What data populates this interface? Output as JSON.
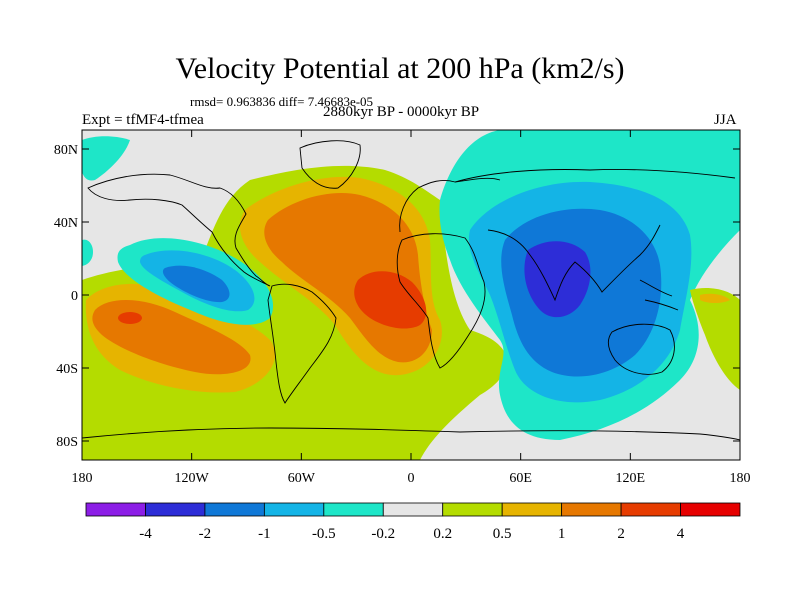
{
  "title": "Velocity Potential at 200 hPa (km2/s)",
  "stats_line": "rmsd= 0.963836 diff= 7.46683e-05",
  "experiment": "Expt = tfMF4-tfmea",
  "period": "2880kyr BP - 0000kyr BP",
  "season": "JJA",
  "axes": {
    "x_ticks": [
      "180",
      "120W",
      "60W",
      "0",
      "60E",
      "120E",
      "180"
    ],
    "y_ticks": [
      "80N",
      "40N",
      "0",
      "40S",
      "80S"
    ]
  },
  "colorbar": {
    "labels": [
      "-4",
      "-2",
      "-1",
      "-0.5",
      "-0.2",
      "0.2",
      "0.5",
      "1",
      "2",
      "4"
    ],
    "colors": [
      "#8c1ee6",
      "#2d2dd7",
      "#0f78d7",
      "#14b4e6",
      "#1ee6c8",
      "#e6e6e6",
      "#b4dc00",
      "#e6b400",
      "#e67800",
      "#e63c00",
      "#e60000"
    ]
  }
}
